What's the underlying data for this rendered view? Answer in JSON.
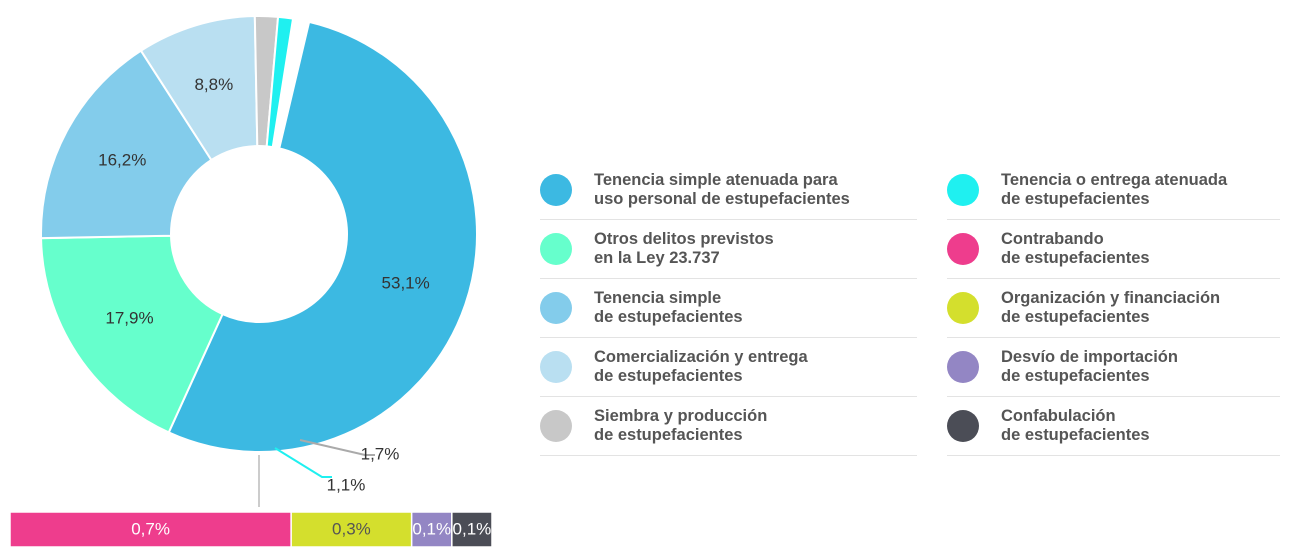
{
  "chart_data": {
    "type": "donut",
    "series": [
      {
        "name": "Tenencia simple atenuada para\nuso personal de estupefacientes",
        "color": "#3cb9e2",
        "value": 53.1,
        "value_label": "53,1%"
      },
      {
        "name": "Otros delitos previstos\nen la Ley 23.737",
        "color": "#66ffcc",
        "value": 17.9,
        "value_label": "17,9%"
      },
      {
        "name": "Tenencia simple\nde estupefacientes",
        "color": "#83cceb",
        "value": 16.2,
        "value_label": "16,2%"
      },
      {
        "name": "Comercialización y entrega\nde estupefacientes",
        "color": "#b9dff1",
        "value": 8.8,
        "value_label": "8,8%"
      },
      {
        "name": "Siembra y producción\nde estupefacientes",
        "color": "#c8c8c8",
        "value": 1.7,
        "value_label": "1,7%"
      },
      {
        "name": "Tenencia o entrega atenuada\nde estupefacientes",
        "color": "#1ff0f0",
        "value": 1.1,
        "value_label": "1,1%"
      },
      {
        "name": "Contrabando\nde estupefacientes",
        "color": "#ee3d8d",
        "value": 0.7,
        "value_label": "0,7%"
      },
      {
        "name": "Organización y financiación\nde estupefacientes",
        "color": "#d4df2d",
        "value": 0.3,
        "value_label": "0,3%"
      },
      {
        "name": "Desvío de importación\nde estupefacientes",
        "color": "#9386c4",
        "value": 0.1,
        "value_label": "0,1%"
      },
      {
        "name": "Confabulación\nde estupefacientes",
        "color": "#4b4d56",
        "value": 0.1,
        "value_label": "0,1%"
      }
    ]
  }
}
